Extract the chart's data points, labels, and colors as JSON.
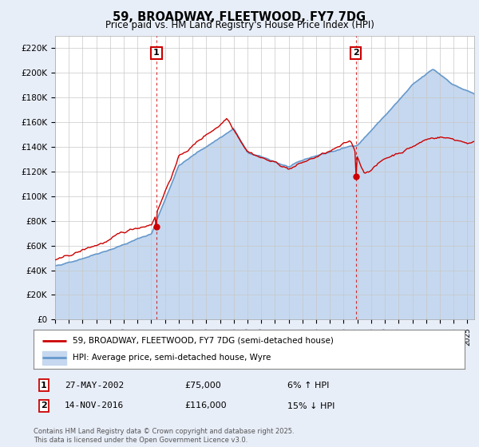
{
  "title": "59, BROADWAY, FLEETWOOD, FY7 7DG",
  "subtitle": "Price paid vs. HM Land Registry's House Price Index (HPI)",
  "ylim": [
    0,
    230000
  ],
  "yticks": [
    0,
    20000,
    40000,
    60000,
    80000,
    100000,
    120000,
    140000,
    160000,
    180000,
    200000,
    220000
  ],
  "ytick_labels": [
    "£0",
    "£20K",
    "£40K",
    "£60K",
    "£80K",
    "£100K",
    "£120K",
    "£140K",
    "£160K",
    "£180K",
    "£200K",
    "£220K"
  ],
  "line1_color": "#cc0000",
  "line2_color": "#6699cc",
  "line2_fill_color": "#c5d8ef",
  "sale1_t": 2002.375,
  "sale1_v": 75000,
  "sale2_t": 2016.875,
  "sale2_v": 116000,
  "annotation1": "27-MAY-2002",
  "annotation1_price": "£75,000",
  "annotation1_hpi": "6% ↑ HPI",
  "annotation2": "14-NOV-2016",
  "annotation2_price": "£116,000",
  "annotation2_hpi": "15% ↓ HPI",
  "legend_line1": "59, BROADWAY, FLEETWOOD, FY7 7DG (semi-detached house)",
  "legend_line2": "HPI: Average price, semi-detached house, Wyre",
  "footer": "Contains HM Land Registry data © Crown copyright and database right 2025.\nThis data is licensed under the Open Government Licence v3.0.",
  "background_color": "#e8eef8",
  "plot_bg_color": "#ffffff",
  "grid_color": "#c8c8c8"
}
